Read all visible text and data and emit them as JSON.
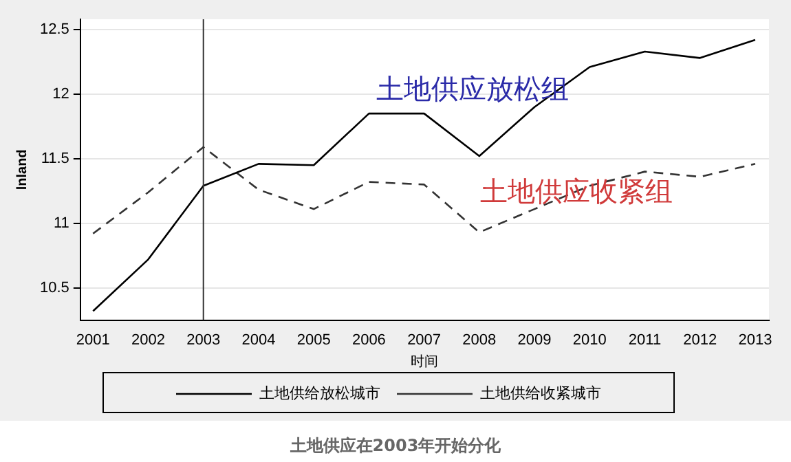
{
  "chart_data": {
    "type": "line",
    "xlabel": "时间",
    "ylabel": "lnland",
    "x": [
      2001,
      2002,
      2003,
      2004,
      2005,
      2006,
      2007,
      2008,
      2009,
      2010,
      2011,
      2012,
      2013
    ],
    "xlim": [
      2000.77,
      2013.25
    ],
    "xticks": [
      2001,
      2002,
      2003,
      2004,
      2005,
      2006,
      2007,
      2008,
      2009,
      2010,
      2011,
      2012,
      2013
    ],
    "ylim": [
      10.25,
      12.58
    ],
    "yticks": [
      10.5,
      11,
      11.5,
      12,
      12.5
    ],
    "series": [
      {
        "name": "土地供给放松城市",
        "color": "#000000",
        "line_style": "solid",
        "values": [
          10.32,
          10.72,
          11.29,
          11.46,
          11.45,
          11.85,
          11.85,
          11.52,
          11.9,
          12.21,
          12.33,
          12.28,
          12.42
        ]
      },
      {
        "name": "土地供给收紧城市",
        "color": "#333333",
        "line_style": "dashed",
        "values": [
          10.92,
          11.24,
          11.59,
          11.26,
          11.11,
          11.32,
          11.3,
          10.93,
          11.11,
          11.29,
          11.4,
          11.36,
          11.46
        ]
      }
    ],
    "ref_lines": [
      {
        "axis": "x",
        "value": 2003,
        "color": "#333333"
      }
    ],
    "annotations": [
      "土地供应放松组",
      "土地供应收紧组",
      "土地供应在2003年开始分化"
    ],
    "grid": "y",
    "legend": "bottom",
    "marker": "none"
  }
}
